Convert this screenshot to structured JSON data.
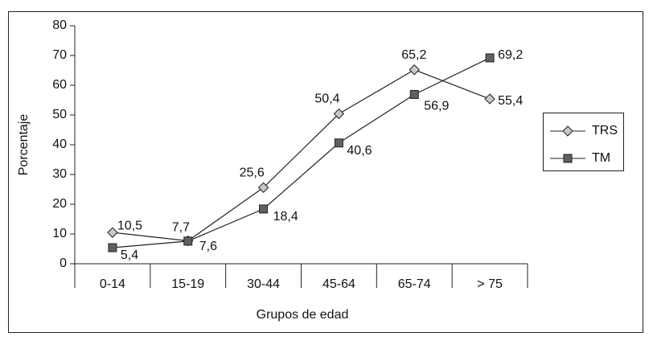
{
  "chart_data": {
    "type": "line",
    "categories": [
      "0-14",
      "15-19",
      "30-44",
      "45-64",
      "65-74",
      "> 75"
    ],
    "series": [
      {
        "name": "TRS",
        "color": "#c8c8c8",
        "marker": "diamond",
        "values": [
          10.5,
          7.7,
          25.6,
          50.4,
          65.2,
          55.4
        ],
        "value_labels": [
          "10,5",
          "7,7",
          "25,6",
          "50,4",
          "65,2",
          "55,4"
        ]
      },
      {
        "name": "TM",
        "color": "#606060",
        "marker": "square",
        "values": [
          5.4,
          7.6,
          18.4,
          40.6,
          56.9,
          69.2
        ],
        "value_labels": [
          "5,4",
          "7,6",
          "18,4",
          "40,6",
          "56,9",
          "69,2"
        ]
      }
    ],
    "ylim": [
      0,
      80
    ],
    "yticks": [
      0,
      10,
      20,
      30,
      40,
      50,
      60,
      70,
      80
    ],
    "ylabel": "Porcentaje",
    "xlabel": "Grupos de edad",
    "legend": "right"
  }
}
